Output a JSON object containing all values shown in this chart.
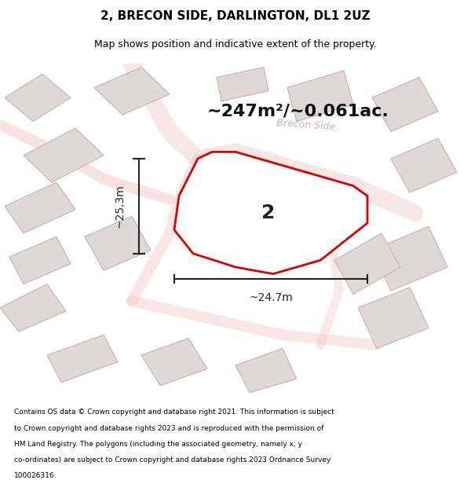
{
  "title": "2, BRECON SIDE, DARLINGTON, DL1 2UZ",
  "subtitle": "Map shows position and indicative extent of the property.",
  "area_text": "~247m²/~0.061ac.",
  "street_label": "Brecon Side",
  "plot_label": "2",
  "dim_vertical": "~25.3m",
  "dim_horizontal": "~24.7m",
  "footer_lines": [
    "Contains OS data © Crown copyright and database right 2021. This information is subject",
    "to Crown copyright and database rights 2023 and is reproduced with the permission of",
    "HM Land Registry. The polygons (including the associated geometry, namely x, y",
    "co-ordinates) are subject to Crown copyright and database rights 2023 Ordnance Survey",
    "100026316."
  ],
  "map_bg": "#f7f2f2",
  "road_color": "#f2c8c8",
  "building_fill": "#e0d8d8",
  "building_stroke": "#c8b0b0",
  "plot_stroke": "#dd0000",
  "plot_fill": "#ffffff",
  "dim_line_color": "#222222",
  "title_color": "#000000",
  "footer_color": "#000000",
  "street_label_color": "#c0b8b8"
}
